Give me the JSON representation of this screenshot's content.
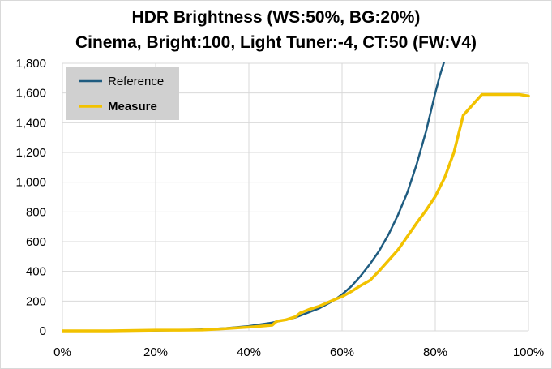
{
  "chart_data": {
    "type": "line",
    "title": "HDR Brightness (WS:50%, BG:20%)",
    "subtitle": "Cinema, Bright:100, Light Tuner:-4, CT:50 (FW:V4)",
    "xlabel": "",
    "ylabel": "",
    "xlim": [
      0,
      100
    ],
    "ylim": [
      0,
      1800
    ],
    "x_ticks": [
      "0%",
      "20%",
      "40%",
      "60%",
      "80%",
      "100%"
    ],
    "x_tick_values": [
      0,
      20,
      40,
      60,
      80,
      100
    ],
    "y_ticks": [
      "0",
      "200",
      "400",
      "600",
      "800",
      "1,000",
      "1,200",
      "1,400",
      "1,600",
      "1,800"
    ],
    "y_tick_values": [
      0,
      200,
      400,
      600,
      800,
      1000,
      1200,
      1400,
      1600,
      1800
    ],
    "grid": true,
    "legend_position": "top-left",
    "series": [
      {
        "name": "Reference",
        "color": "#1f5c80",
        "x": [
          0,
          10,
          20,
          25,
          30,
          35,
          40,
          45,
          50,
          55,
          58,
          60,
          62,
          64,
          66,
          68,
          70,
          72,
          74,
          76,
          78,
          80,
          81,
          82
        ],
        "y": [
          0,
          0.5,
          2,
          5,
          10,
          18,
          32,
          55,
          90,
          150,
          200,
          245,
          300,
          370,
          450,
          540,
          650,
          780,
          930,
          1120,
          1340,
          1600,
          1720,
          1820
        ]
      },
      {
        "name": "Measure",
        "color": "#f2c200",
        "x": [
          0,
          10,
          20,
          25,
          30,
          35,
          40,
          42,
          45,
          46,
          48,
          50,
          51,
          53,
          55,
          58,
          60,
          62,
          64,
          66,
          68,
          70,
          72,
          74,
          76,
          78,
          80,
          82,
          84,
          86,
          88,
          90,
          92,
          95,
          98,
          100
        ],
        "y": [
          0,
          0,
          5,
          5,
          6,
          15,
          25,
          30,
          38,
          65,
          75,
          95,
          120,
          145,
          165,
          205,
          230,
          265,
          305,
          340,
          405,
          475,
          545,
          635,
          725,
          810,
          905,
          1030,
          1200,
          1450,
          1520,
          1590,
          1590,
          1590,
          1590,
          1580
        ]
      }
    ]
  }
}
